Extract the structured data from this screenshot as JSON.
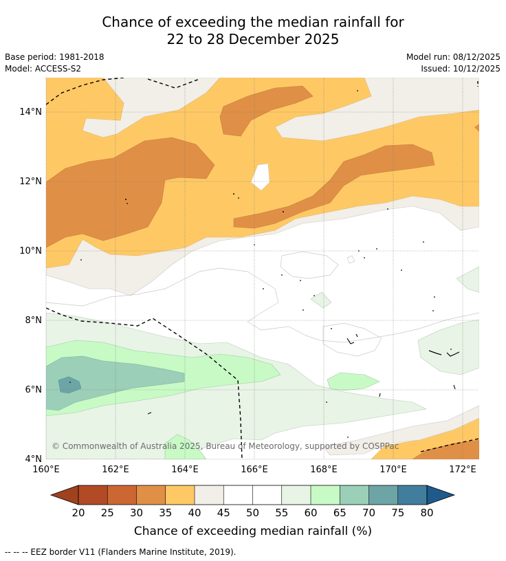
{
  "title": {
    "line1": "Chance of exceeding the median rainfall for",
    "line2": "22 to 28 December 2025"
  },
  "meta": {
    "base_period": "Base period: 1981-2018",
    "model": "Model: ACCESS-S2",
    "model_run": "Model run: 08/12/2025",
    "issued": "Issued: 10/12/2025"
  },
  "map": {
    "lat_labels": [
      "4°N",
      "6°N",
      "8°N",
      "10°N",
      "12°N",
      "14°N"
    ],
    "lon_labels": [
      "160°E",
      "162°E",
      "164°E",
      "166°E",
      "168°E",
      "170°E",
      "172°E"
    ],
    "copyright": "© Commonwealth of Australia 2025, Bureau of Meteorology, supported by COSPPac"
  },
  "colorbar": {
    "ticks": [
      "20",
      "25",
      "30",
      "35",
      "40",
      "45",
      "50",
      "55",
      "60",
      "65",
      "70",
      "75",
      "80"
    ],
    "colors": {
      "below20": "#a0421e",
      "c20_25": "#b24a26",
      "c25_30": "#cc6633",
      "c30_35": "#e09046",
      "c35_40": "#fec965",
      "c40_45": "#f2eee8",
      "c45_50": "#ffffff",
      "c50_55": "#ffffff",
      "c55_60": "#e8f4e6",
      "c60_65": "#c8fac6",
      "c65_70": "#9ccfb8",
      "c70_75": "#6da5a7",
      "c75_80": "#417e9d",
      "above80": "#1f5a8c"
    },
    "label": "Chance of exceeding median rainfall (%)"
  },
  "footer": "--  --  -- EEZ border V11 (Flanders Marine Institute, 2019)."
}
